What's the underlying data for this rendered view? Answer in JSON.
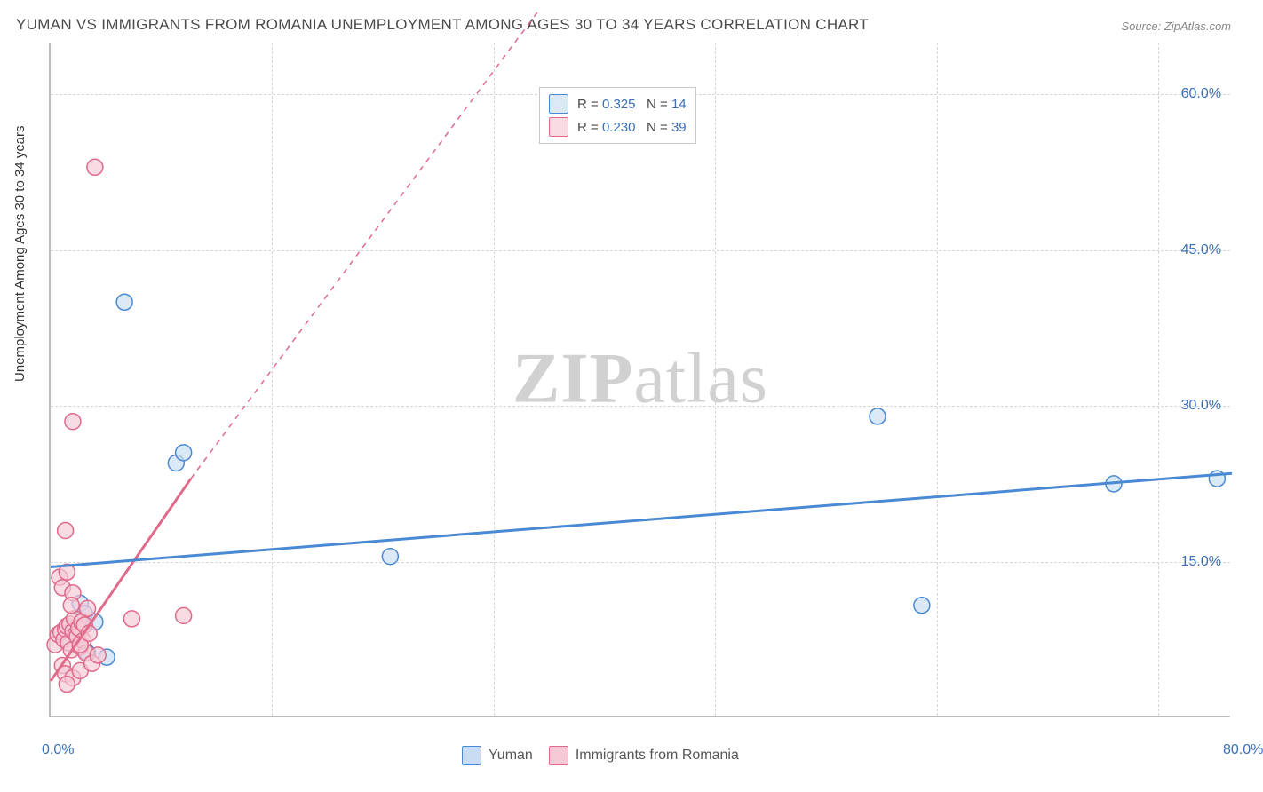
{
  "title": "YUMAN VS IMMIGRANTS FROM ROMANIA UNEMPLOYMENT AMONG AGES 30 TO 34 YEARS CORRELATION CHART",
  "source": "Source: ZipAtlas.com",
  "watermark": "ZIPatlas",
  "ylabel": "Unemployment Among Ages 30 to 34 years",
  "chart": {
    "type": "scatter",
    "xlim": [
      0,
      80
    ],
    "ylim": [
      0,
      65
    ],
    "xticks": [
      {
        "v": 0,
        "l": "0.0%"
      },
      {
        "v": 80,
        "l": "80.0%"
      }
    ],
    "yticks": [
      {
        "v": 15,
        "l": "15.0%"
      },
      {
        "v": 30,
        "l": "30.0%"
      },
      {
        "v": 45,
        "l": "45.0%"
      },
      {
        "v": 60,
        "l": "60.0%"
      }
    ],
    "grid_v": [
      15,
      30,
      45,
      60,
      75
    ],
    "grid_h": [
      15,
      30,
      45,
      60
    ],
    "grid_color": "#d6d6d6",
    "background_color": "#ffffff",
    "series": [
      {
        "name": "Yuman",
        "color_fill": "#c9dcf2aa",
        "color_stroke": "#4a8ad4",
        "marker_radius": 9,
        "R": "0.325",
        "N": "14",
        "points": [
          [
            1.2,
            8.5
          ],
          [
            2.0,
            11.0
          ],
          [
            2.3,
            10.0
          ],
          [
            3.0,
            9.2
          ],
          [
            3.8,
            5.8
          ],
          [
            5.0,
            40.0
          ],
          [
            8.5,
            24.5
          ],
          [
            9.0,
            25.5
          ],
          [
            23.0,
            15.5
          ],
          [
            56.0,
            29.0
          ],
          [
            59.0,
            10.8
          ],
          [
            72.0,
            22.5
          ],
          [
            79.0,
            23.0
          ],
          [
            2.5,
            6.2
          ]
        ],
        "trend": {
          "x1": 0,
          "y1": 14.5,
          "x2": 80,
          "y2": 23.5,
          "dash": false,
          "width": 3
        }
      },
      {
        "name": "Immigrants from Romania",
        "color_fill": "#f5c9d5aa",
        "color_stroke": "#e06a8a",
        "marker_radius": 9,
        "R": "0.230",
        "N": "39",
        "points": [
          [
            0.3,
            7.0
          ],
          [
            0.5,
            8.0
          ],
          [
            0.7,
            8.2
          ],
          [
            0.9,
            7.5
          ],
          [
            1.0,
            8.5
          ],
          [
            1.1,
            8.8
          ],
          [
            1.2,
            7.2
          ],
          [
            1.3,
            9.0
          ],
          [
            1.4,
            6.5
          ],
          [
            1.5,
            8.3
          ],
          [
            1.6,
            9.5
          ],
          [
            1.7,
            8.0
          ],
          [
            1.8,
            7.8
          ],
          [
            1.9,
            8.6
          ],
          [
            2.0,
            6.8
          ],
          [
            2.1,
            9.2
          ],
          [
            2.2,
            7.4
          ],
          [
            2.3,
            8.9
          ],
          [
            2.4,
            6.2
          ],
          [
            2.5,
            10.5
          ],
          [
            0.8,
            5.0
          ],
          [
            1.0,
            4.2
          ],
          [
            1.5,
            3.8
          ],
          [
            2.0,
            4.5
          ],
          [
            2.8,
            5.2
          ],
          [
            1.1,
            3.2
          ],
          [
            0.6,
            13.5
          ],
          [
            0.8,
            12.5
          ],
          [
            1.1,
            14.0
          ],
          [
            1.5,
            12.0
          ],
          [
            1.0,
            18.0
          ],
          [
            2.0,
            7.0
          ],
          [
            1.5,
            28.5
          ],
          [
            3.0,
            53.0
          ],
          [
            5.5,
            9.5
          ],
          [
            9.0,
            9.8
          ],
          [
            2.6,
            8.1
          ],
          [
            1.4,
            10.8
          ],
          [
            3.2,
            6.0
          ]
        ],
        "trend_solid": {
          "x1": 0,
          "y1": 3.5,
          "x2": 9.5,
          "y2": 23.0,
          "width": 3
        },
        "trend_dash": {
          "x1": 9.5,
          "y1": 23.0,
          "x2": 33,
          "y2": 68
        }
      }
    ]
  },
  "legend_bottom": [
    {
      "label": "Yuman",
      "fill": "#c9dcf2",
      "stroke": "#4a8ad4"
    },
    {
      "label": "Immigrants from Romania",
      "fill": "#f5c9d5",
      "stroke": "#e06a8a"
    }
  ]
}
